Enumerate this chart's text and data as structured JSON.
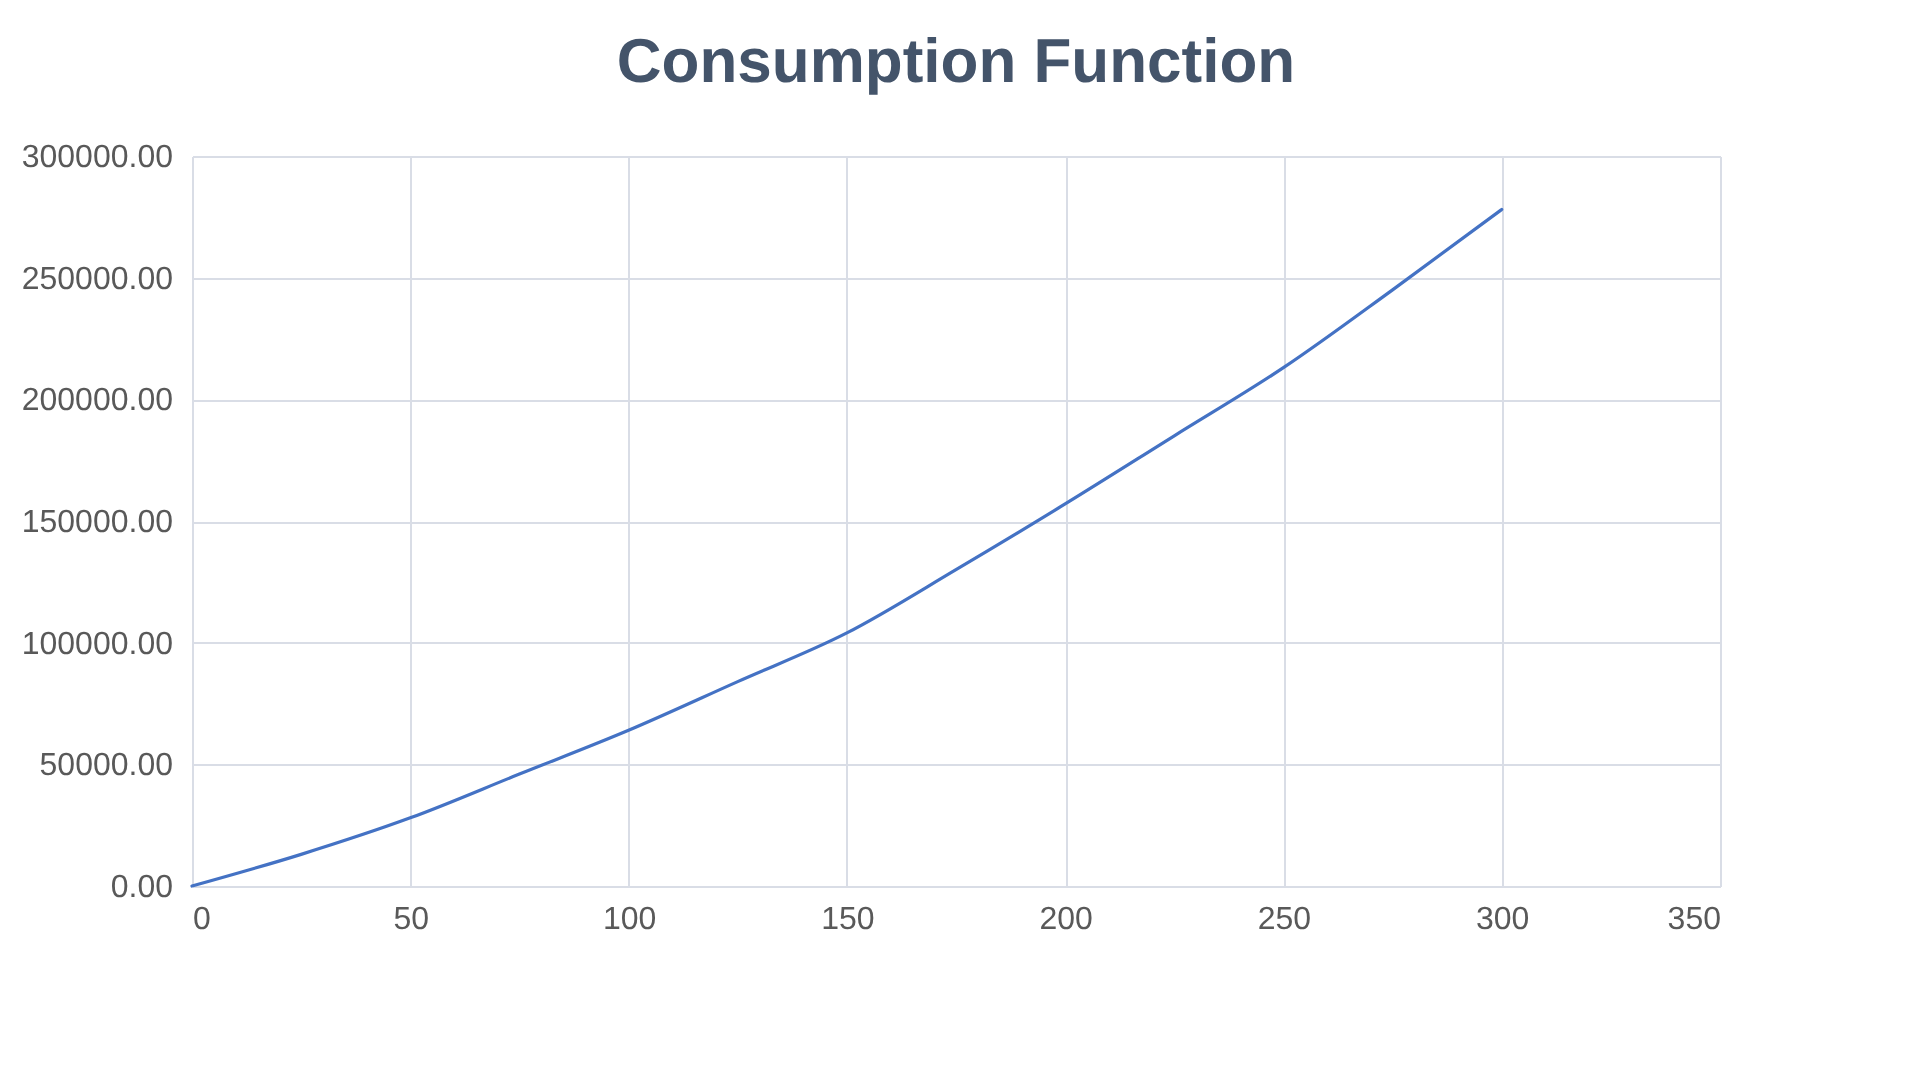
{
  "chart_data": {
    "type": "line",
    "title": "Consumption Function",
    "x": [
      0,
      25,
      50,
      75,
      100,
      125,
      150,
      175,
      200,
      225,
      250,
      275,
      300
    ],
    "series": [
      {
        "color": "#4472c4",
        "values": [
          0,
          13000,
          28000,
          46000,
          64000,
          84000,
          104000,
          130000,
          157000,
          185000,
          213000,
          245000,
          278000
        ]
      }
    ],
    "xlim": [
      0,
      350
    ],
    "xticks": [
      0,
      50,
      100,
      150,
      200,
      250,
      300,
      350
    ],
    "ylim": [
      0,
      300000
    ],
    "yticks": [
      {
        "value": 0,
        "label": "0.00"
      },
      {
        "value": 50000,
        "label": "50000.00"
      },
      {
        "value": 100000,
        "label": "100000.00"
      },
      {
        "value": 150000,
        "label": "150000.00"
      },
      {
        "value": 200000,
        "label": "200000.00"
      },
      {
        "value": 250000,
        "label": "250000.00"
      },
      {
        "value": 300000,
        "label": "300000.00"
      }
    ],
    "grid": true,
    "marker": "none",
    "line_style": "solid"
  }
}
